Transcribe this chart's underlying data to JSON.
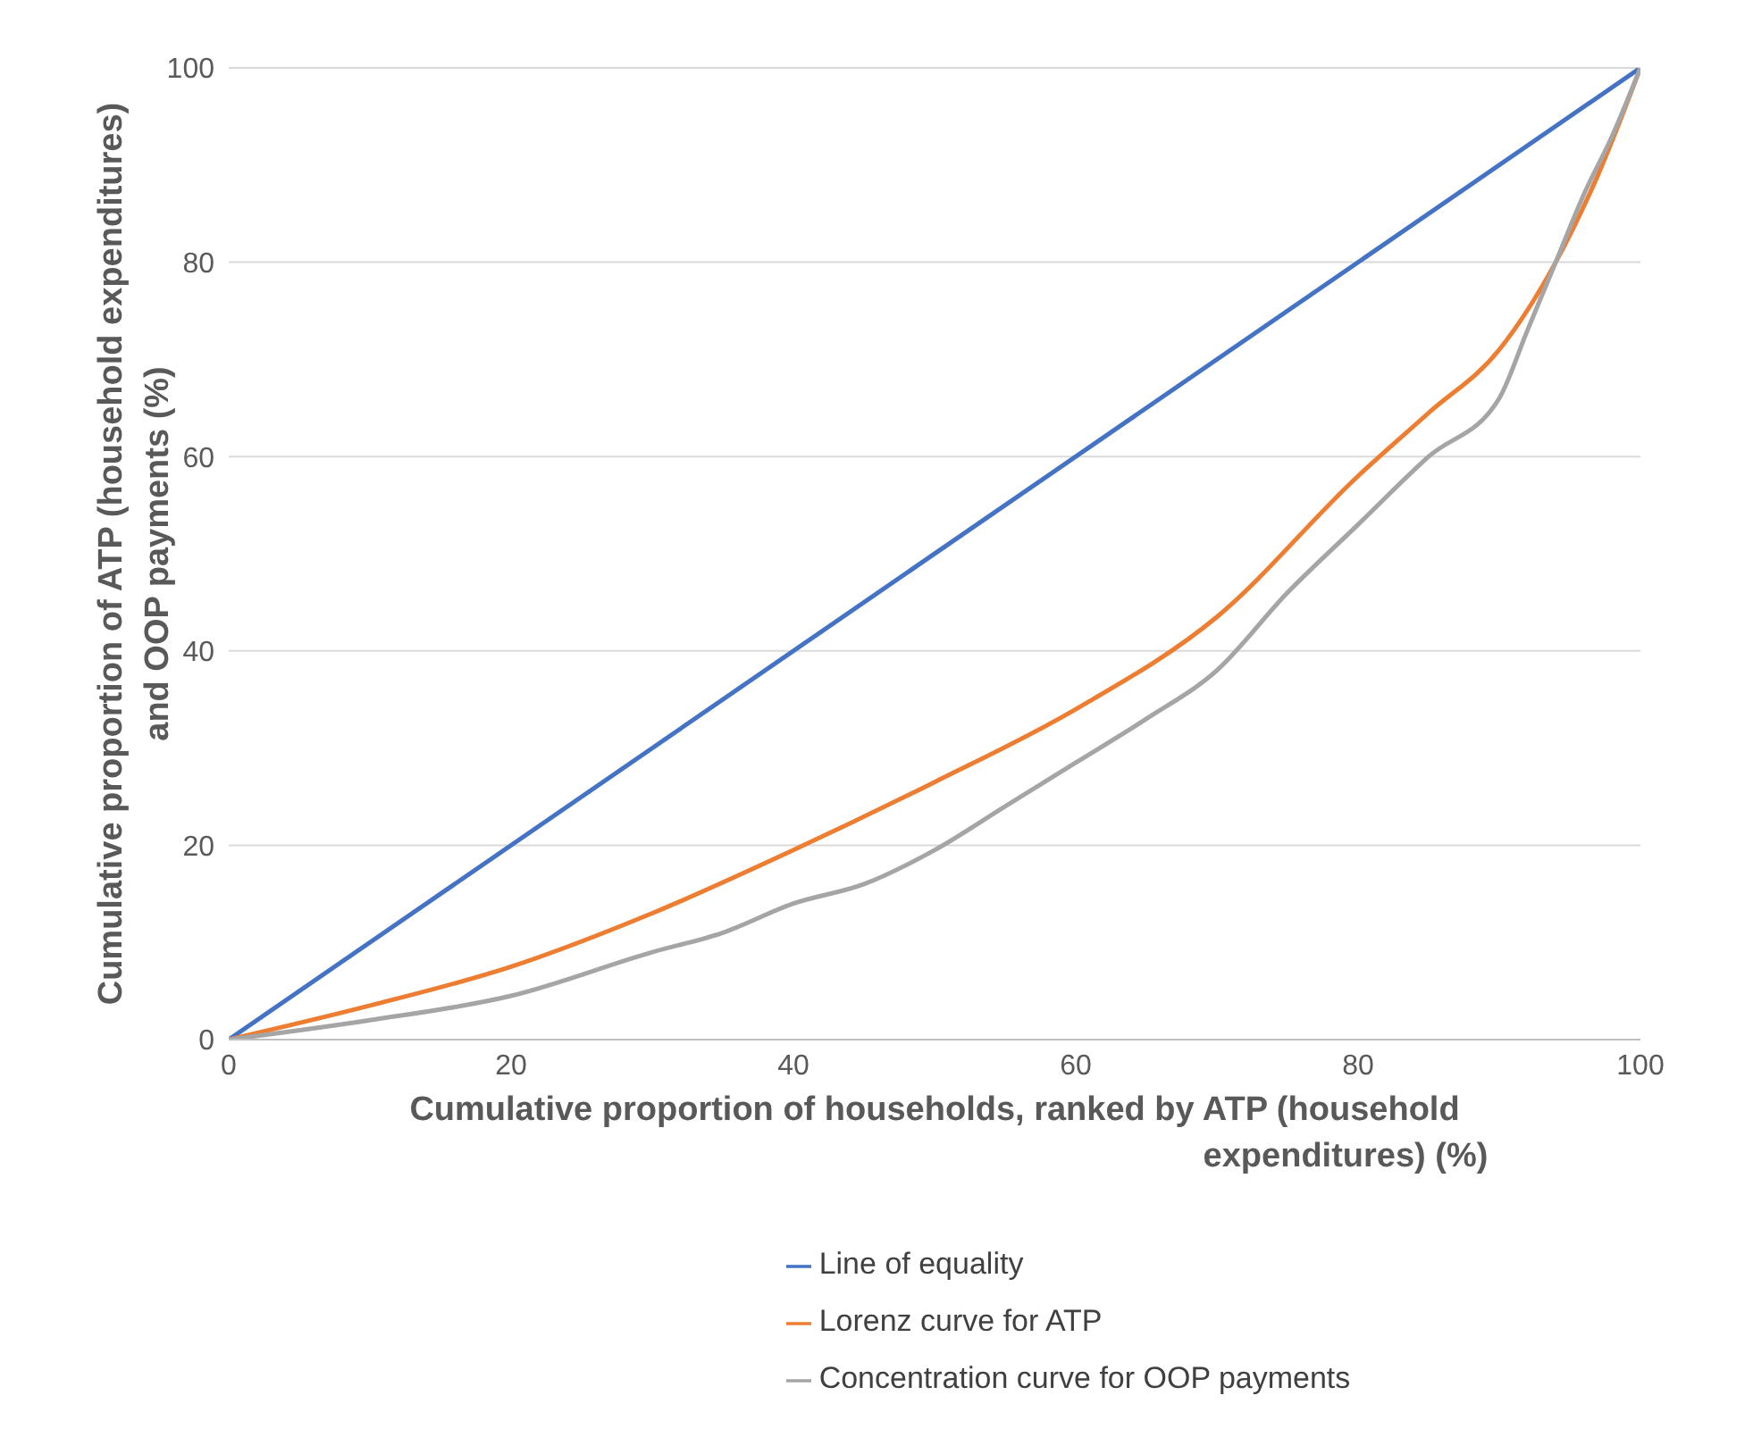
{
  "chart_data": {
    "type": "line",
    "xlabel": "Cumulative proportion of households, ranked by ATP (household expenditures) (%)",
    "ylabel": "Cumulative proportion of  ATP (household expenditures) and OOP payments (%)",
    "xlim": [
      0,
      100
    ],
    "xticks": [
      0,
      20,
      40,
      60,
      80,
      100
    ],
    "ylim": [
      0,
      100
    ],
    "yticks": [
      0,
      20,
      40,
      60,
      80,
      100
    ],
    "grid": "y",
    "legend": "bottom",
    "marker": "none",
    "line_style": "solid",
    "series": [
      {
        "name": "Line of equality",
        "color": "#4472c4",
        "x": [
          0,
          100
        ],
        "values": [
          0,
          100
        ]
      },
      {
        "name": "Lorenz curve for ATP",
        "color": "#ed7d31",
        "x": [
          0,
          10,
          20,
          30,
          40,
          50,
          60,
          70,
          80,
          85,
          90,
          94,
          97,
          100
        ],
        "values": [
          0,
          3.5,
          7.5,
          13,
          19.5,
          26.5,
          34,
          43.5,
          58,
          64.5,
          71,
          80,
          89,
          100
        ]
      },
      {
        "name": "Concentration curve for OOP payments",
        "color": "#a5a5a5",
        "x": [
          0,
          10,
          20,
          30,
          35,
          40,
          45,
          50,
          55,
          60,
          65,
          70,
          75,
          80,
          85,
          90,
          92,
          94,
          96,
          98,
          100
        ],
        "values": [
          0,
          2,
          4.5,
          9,
          11,
          14,
          16,
          19.5,
          24,
          28.5,
          33,
          38,
          46,
          53,
          60,
          66,
          73,
          80,
          87,
          93,
          100
        ]
      }
    ]
  }
}
